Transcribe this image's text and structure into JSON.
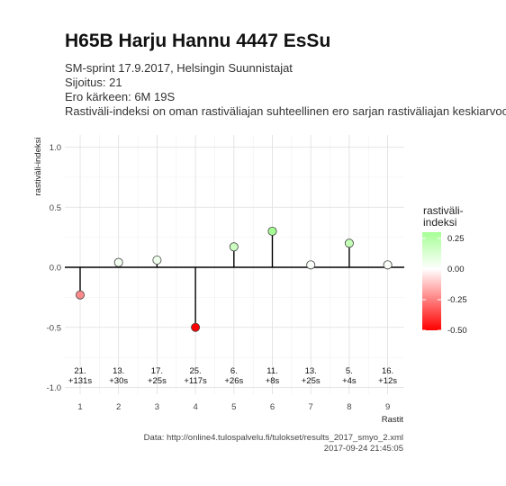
{
  "title": "H65B Harju Hannu 4447 EsSu",
  "subtitle_lines": [
    "SM-sprint 17.9.2017, Helsingin Suunnistajat",
    "Sijoitus: 21",
    "Ero kärkeen: 6M 19S",
    "Rastiväli-indeksi on oman rastiväliajan suhteellinen ero sarjan rastiväliajan keskiarvoon"
  ],
  "caption_lines": [
    "Data: http://online4.tulospalvelu.fi/tulokset/results_2017_smyo_2.xml",
    "2017-09-24 21:45:05"
  ],
  "chart_data": {
    "type": "lollipop",
    "xlabel": "Rastit",
    "ylabel": "rastiväli-indeksi",
    "x": [
      1,
      2,
      3,
      4,
      5,
      6,
      7,
      8,
      9
    ],
    "values": [
      -0.23,
      0.04,
      0.06,
      -0.5,
      0.17,
      0.3,
      0.02,
      0.2,
      0.02
    ],
    "split_labels": [
      [
        "21.",
        "+131s"
      ],
      [
        "13.",
        "+30s"
      ],
      [
        "17.",
        "+25s"
      ],
      [
        "25.",
        "+117s"
      ],
      [
        "6.",
        "+26s"
      ],
      [
        "11.",
        "+8s"
      ],
      [
        "13.",
        "+25s"
      ],
      [
        "5.",
        "+4s"
      ],
      [
        "16.",
        "+12s"
      ]
    ],
    "xticks": [
      "1",
      "2",
      "3",
      "4",
      "5",
      "6",
      "7",
      "8",
      "9"
    ],
    "yticks": [
      -1.0,
      -0.5,
      0.0,
      0.5,
      1.0
    ],
    "ytick_labels": [
      "-1.0",
      "-0.5",
      "0.0",
      "0.5",
      "1.0"
    ],
    "ylim": [
      -1.0,
      1.0
    ],
    "grid": true,
    "legend": {
      "title_lines": [
        "rastiväli-",
        "indeksi"
      ],
      "tick_values": [
        0.25,
        0.0,
        -0.25,
        -0.5
      ],
      "tick_labels": [
        "0.25",
        "0.00",
        "-0.25",
        "-0.50"
      ],
      "range": [
        -0.5,
        0.3
      ],
      "placement": "right",
      "colors": {
        "low": "#ff0000",
        "mid": "#ffffff",
        "high": "#a6ff95"
      }
    }
  }
}
